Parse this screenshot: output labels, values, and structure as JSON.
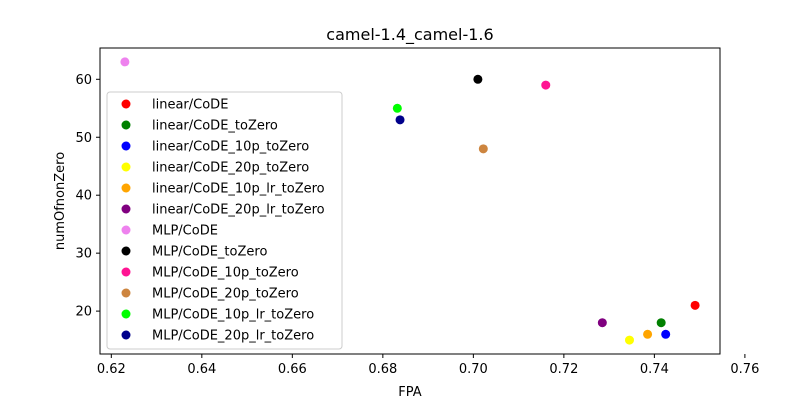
{
  "chart_data": {
    "type": "scatter",
    "title": "camel-1.4_camel-1.6",
    "xlabel": "FPA",
    "ylabel": "numOfnonZero",
    "xlim": [
      0.6175,
      0.7545
    ],
    "ylim": [
      12.6,
      65.4
    ],
    "xticks": [
      0.62,
      0.64,
      0.66,
      0.68,
      0.7,
      0.72,
      0.74,
      0.76
    ],
    "xtick_labels": [
      "0.62",
      "0.64",
      "0.66",
      "0.68",
      "0.70",
      "0.72",
      "0.74",
      "0.76"
    ],
    "yticks": [
      20,
      30,
      40,
      50,
      60
    ],
    "ytick_labels": [
      "20",
      "30",
      "40",
      "50",
      "60"
    ],
    "grid": false,
    "legend_placement": "center-left",
    "series": [
      {
        "name": "linear/CoDE",
        "color": "#ff0000",
        "x": [
          0.749
        ],
        "y": [
          21
        ]
      },
      {
        "name": "linear/CoDE_toZero",
        "color": "#008000",
        "x": [
          0.7415
        ],
        "y": [
          18
        ]
      },
      {
        "name": "linear/CoDE_10p_toZero",
        "color": "#0000ff",
        "x": [
          0.7425
        ],
        "y": [
          16
        ]
      },
      {
        "name": "linear/CoDE_20p_toZero",
        "color": "#ffff00",
        "x": [
          0.7345
        ],
        "y": [
          15
        ]
      },
      {
        "name": "linear/CoDE_10p_lr_toZero",
        "color": "#ffa500",
        "x": [
          0.7385
        ],
        "y": [
          16
        ]
      },
      {
        "name": "linear/CoDE_20p_lr_toZero",
        "color": "#800080",
        "x": [
          0.7285
        ],
        "y": [
          18
        ]
      },
      {
        "name": "MLP/CoDE",
        "color": "#ee82ee",
        "x": [
          0.623
        ],
        "y": [
          63
        ]
      },
      {
        "name": "MLP/CoDE_toZero",
        "color": "#000000",
        "x": [
          0.701
        ],
        "y": [
          60
        ]
      },
      {
        "name": "MLP/CoDE_10p_toZero",
        "color": "#ff1493",
        "x": [
          0.716
        ],
        "y": [
          59
        ]
      },
      {
        "name": "MLP/CoDE_20p_toZero",
        "color": "#cd853f",
        "x": [
          0.7022
        ],
        "y": [
          48
        ]
      },
      {
        "name": "MLP/CoDE_10p_lr_toZero",
        "color": "#00ff00",
        "x": [
          0.6832
        ],
        "y": [
          55
        ]
      },
      {
        "name": "MLP/CoDE_20p_lr_toZero",
        "color": "#00008b",
        "x": [
          0.6838
        ],
        "y": [
          53
        ]
      }
    ]
  }
}
